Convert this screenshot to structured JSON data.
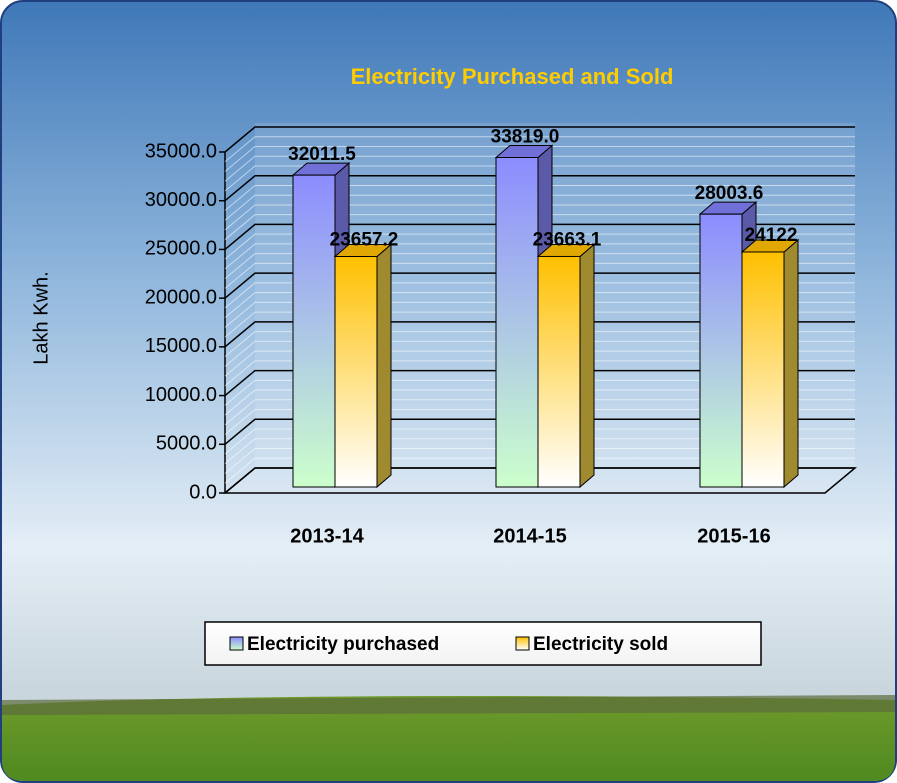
{
  "chart_data": {
    "type": "bar3d",
    "title": "Electricity Purchased and Sold",
    "y_label": "Lakh Kwh.",
    "categories": [
      "2013-14",
      "2014-15",
      "2015-16"
    ],
    "series": [
      {
        "name": "Electricity purchased",
        "color": "#8c8cff",
        "color2": "#ccffcc",
        "values": [
          32011.5,
          33819.0,
          28003.6
        ],
        "value_labels": [
          "32011.5",
          "33819.0",
          "28003.6"
        ]
      },
      {
        "name": "Electricity sold",
        "color": "#ffc000",
        "color2": "#ffffff",
        "values": [
          23657.2,
          23663.1,
          24122
        ],
        "value_labels": [
          "23657.2",
          "23663.1",
          "24122"
        ]
      }
    ],
    "ylim": [
      0,
      35000
    ],
    "yticks": [
      {
        "value": 0,
        "label": "0.0"
      },
      {
        "value": 5000,
        "label": "5000.0"
      },
      {
        "value": 10000,
        "label": "10000.0"
      },
      {
        "value": 15000,
        "label": "15000.0"
      },
      {
        "value": 20000,
        "label": "20000.0"
      },
      {
        "value": 25000,
        "label": "25000.0"
      },
      {
        "value": 30000,
        "label": "30000.0"
      },
      {
        "value": 35000,
        "label": "35000.0"
      }
    ],
    "grid": true,
    "legend": "bottom"
  }
}
